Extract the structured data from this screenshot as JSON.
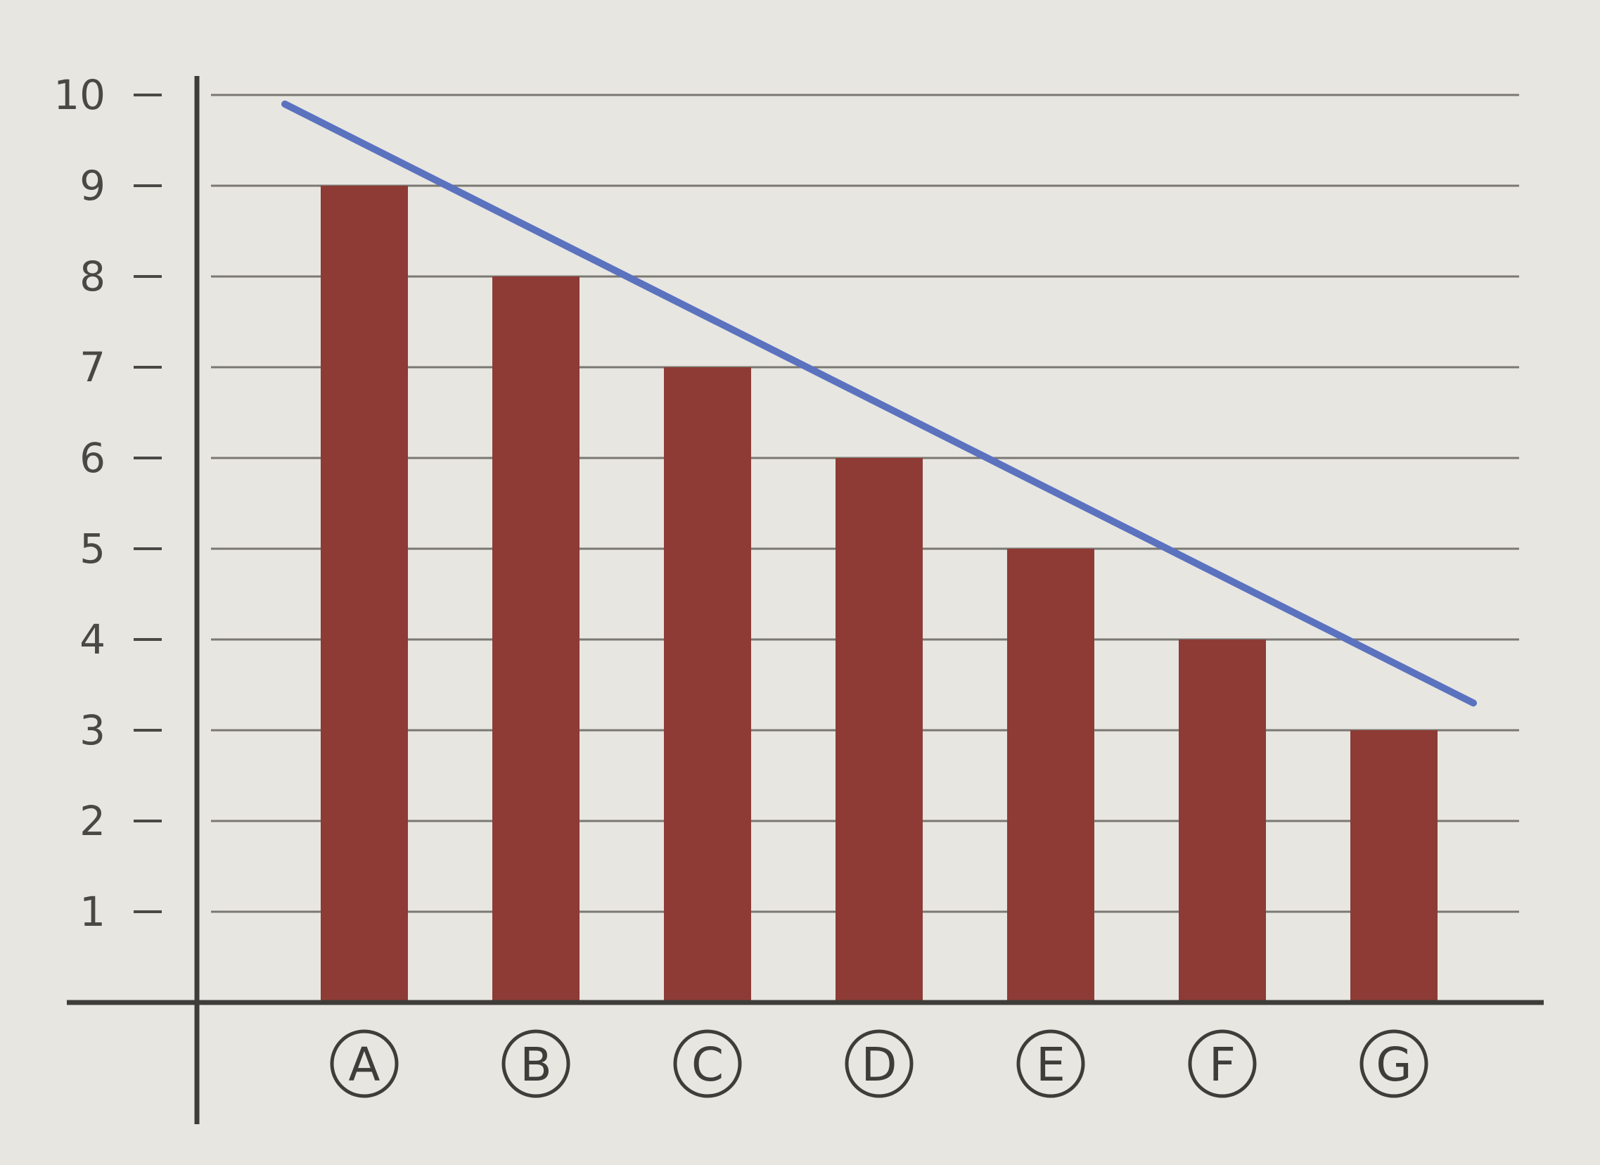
{
  "chart_data": {
    "type": "bar",
    "categories": [
      "A",
      "B",
      "C",
      "D",
      "E",
      "F",
      "G"
    ],
    "values": [
      9,
      8,
      7,
      6,
      5,
      4,
      3
    ],
    "yticks": [
      1,
      2,
      3,
      4,
      5,
      6,
      7,
      8,
      9,
      10
    ],
    "ylim": [
      0,
      10
    ],
    "grid": true,
    "category_labels_circled": true,
    "trend_line": {
      "start": 9.9,
      "end": 3.3
    },
    "colors": {
      "bar": "#8e3b35",
      "trend_line": "#5b72bf",
      "grid": "#7b7872",
      "axis": "#3f3d3a",
      "text": "#4a4845",
      "background": "#e7e6e1"
    }
  }
}
